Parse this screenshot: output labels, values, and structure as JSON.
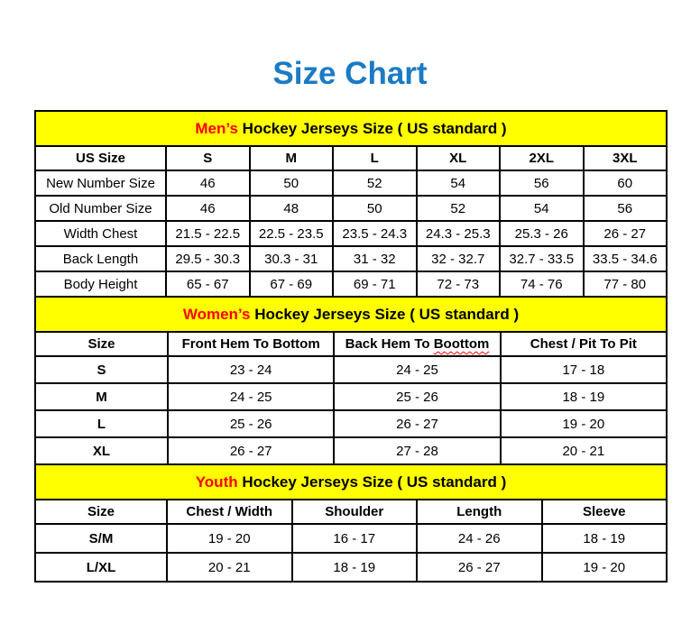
{
  "title": "Size Chart",
  "colors": {
    "title_blue": "#1B7BC4",
    "band_yellow": "#FFFF00",
    "accent_red": "#FF0000",
    "border_black": "#000000",
    "text_black": "#000000",
    "background": "#FFFFFF"
  },
  "chart_data": [
    {
      "type": "table",
      "section": "mens",
      "caption": {
        "accent": "Men’s",
        "rest": "Hockey Jerseys Size ( US standard )"
      },
      "columns": [
        "US Size",
        "S",
        "M",
        "L",
        "XL",
        "2XL",
        "3XL"
      ],
      "rows": [
        [
          "New Number Size",
          "46",
          "50",
          "52",
          "54",
          "56",
          "60"
        ],
        [
          "Old Number Size",
          "46",
          "48",
          "50",
          "52",
          "54",
          "56"
        ],
        [
          "Width Chest",
          "21.5 - 22.5",
          "22.5 - 23.5",
          "23.5 - 24.3",
          "24.3 - 25.3",
          "25.3 - 26",
          "26 - 27"
        ],
        [
          "Back Length",
          "29.5 - 30.3",
          "30.3 - 31",
          "31 - 32",
          "32 - 32.7",
          "32.7 - 33.5",
          "33.5 - 34.6"
        ],
        [
          "Body Height",
          "65 - 67",
          "67 - 69",
          "69 - 71",
          "72 - 73",
          "74 - 76",
          "77 - 80"
        ]
      ]
    },
    {
      "type": "table",
      "section": "womens",
      "caption": {
        "accent": "Women’s",
        "rest": "Hockey Jerseys Size ( US standard )"
      },
      "columns": [
        "Size",
        "Front Hem To Bottom",
        "Back Hem To Boottom",
        "Chest / Pit To Pit"
      ],
      "misspell": {
        "prefix": "Back Hem To ",
        "word": "Boottom"
      },
      "rows": [
        [
          "S",
          "23 - 24",
          "24 - 25",
          "17 - 18"
        ],
        [
          "M",
          "24 - 25",
          "25 - 26",
          "18 - 19"
        ],
        [
          "L",
          "25 - 26",
          "26 - 27",
          "19 - 20"
        ],
        [
          "XL",
          "26 - 27",
          "27 - 28",
          "20 - 21"
        ]
      ]
    },
    {
      "type": "table",
      "section": "youth",
      "caption": {
        "accent": "Youth",
        "rest": "Hockey Jerseys Size ( US standard )"
      },
      "columns": [
        "Size",
        "Chest / Width",
        "Shoulder",
        "Length",
        "Sleeve"
      ],
      "rows": [
        [
          "S/M",
          "19 - 20",
          "16 - 17",
          "24 - 26",
          "18 - 19"
        ],
        [
          "L/XL",
          "20 - 21",
          "18 - 19",
          "26 - 27",
          "19 - 20"
        ]
      ]
    }
  ]
}
